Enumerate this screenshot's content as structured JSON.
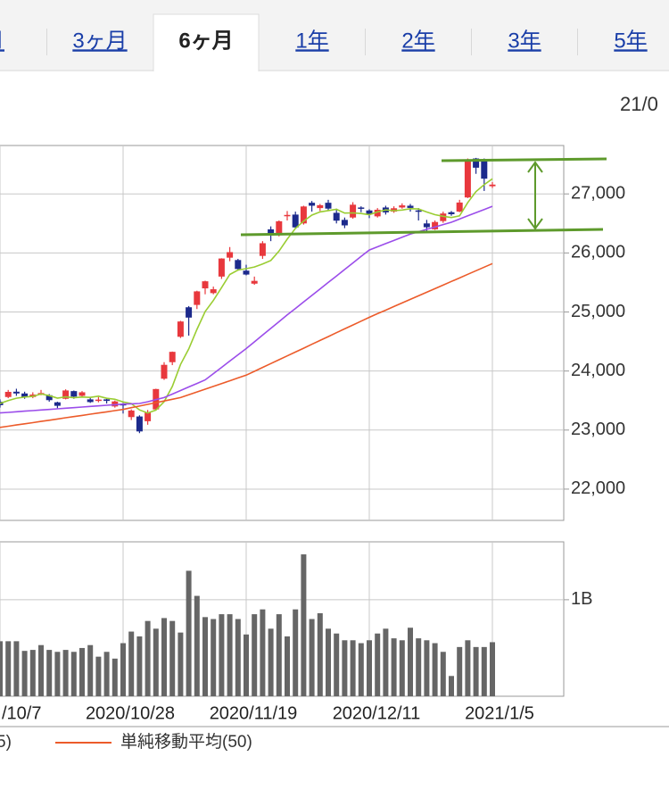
{
  "tabs": {
    "items": [
      "月",
      "3ヶ月",
      "6ヶ月",
      "1年",
      "2年",
      "3年",
      "5年"
    ],
    "selected_index": 2
  },
  "date_header": "21/0",
  "chart_data": [
    {
      "type": "candlestick",
      "open": [
        23480,
        23560,
        23650,
        23620,
        23560,
        23620,
        23590,
        23470,
        23530,
        23660,
        23580,
        23520,
        23500,
        23520,
        23400,
        23440,
        23220,
        23230,
        23150,
        23350,
        23870,
        24150,
        24580,
        25080,
        25120,
        25400,
        25320,
        25600,
        25920,
        25880,
        25700,
        25480,
        25950,
        26400,
        26300,
        26640,
        26650,
        26500,
        26850,
        26760,
        26850,
        26680,
        26560,
        26600,
        26770,
        26720,
        26620,
        26770,
        26700,
        26770,
        26800,
        26720,
        26500,
        26400,
        26540,
        26690,
        26700,
        26940,
        27600,
        27580,
        27130
      ],
      "high": [
        23520,
        23680,
        23700,
        23650,
        23640,
        23680,
        23610,
        23480,
        23690,
        23670,
        23660,
        23550,
        23560,
        23540,
        23500,
        23460,
        23350,
        23250,
        23340,
        23700,
        24150,
        24330,
        24850,
        25100,
        25360,
        25530,
        25430,
        25910,
        26100,
        25900,
        25800,
        25600,
        26200,
        26450,
        26550,
        26710,
        26700,
        26800,
        26880,
        26830,
        26900,
        26750,
        26600,
        26860,
        26790,
        26740,
        26760,
        26800,
        26790,
        26840,
        26830,
        26760,
        26560,
        26550,
        26700,
        26710,
        26900,
        27600,
        27610,
        27600,
        27200
      ],
      "low": [
        23380,
        23540,
        23580,
        23530,
        23540,
        23590,
        23480,
        23370,
        23520,
        23530,
        23560,
        23460,
        23470,
        23450,
        23380,
        23280,
        23170,
        22948,
        23090,
        23340,
        23850,
        24100,
        24560,
        24600,
        25050,
        25300,
        25300,
        25560,
        25860,
        25700,
        25620,
        25460,
        25900,
        26200,
        26280,
        26550,
        26420,
        26480,
        26700,
        26710,
        26720,
        26500,
        26420,
        26580,
        26690,
        26590,
        26600,
        26650,
        26680,
        26750,
        26700,
        26550,
        26360,
        26390,
        26510,
        26630,
        26690,
        26930,
        27340,
        27050,
        27100
      ],
      "close": [
        23422,
        23647,
        23620,
        23559,
        23601,
        23627,
        23507,
        23411,
        23671,
        23567,
        23640,
        23474,
        23516,
        23494,
        23485,
        23418,
        23331,
        22977,
        23295,
        23695,
        24105,
        24325,
        24839,
        24905,
        25349,
        25520,
        25385,
        25906,
        26014,
        25728,
        25634,
        25527,
        26165,
        26296,
        26537,
        26644,
        26433,
        26787,
        26800,
        26809,
        26751,
        26547,
        26467,
        26817,
        26756,
        26652,
        26732,
        26687,
        26757,
        26806,
        26763,
        26714,
        26436,
        26524,
        26668,
        26656,
        26854,
        27568,
        27444,
        27258,
        27158
      ],
      "up_color": "#e8383d",
      "down_color": "#1c2a8c",
      "series": [
        {
          "color": "#9acd32",
          "values": [
            23450,
            23500,
            23540,
            23560,
            23570,
            23611,
            23583,
            23541,
            23563,
            23547,
            23559,
            23553,
            23574,
            23538,
            23522,
            23477,
            23449,
            23341,
            23289,
            23339,
            23481,
            23739,
            24112,
            24374,
            24705,
            25008,
            25196,
            25413,
            25635,
            25711,
            25733,
            25762,
            25814,
            25872,
            26032,
            26234,
            26415,
            26539,
            26640,
            26695,
            26718,
            26739,
            26675,
            26678,
            26668,
            26648,
            26695,
            26729,
            26717,
            26727,
            26750,
            26745,
            26693,
            26649,
            26621,
            26600,
            26628,
            26854,
            27038,
            27156,
            27256
          ]
        },
        {
          "name": "5)",
          "color": "#9b4dea",
          "values": [
            23290,
            23300,
            23310,
            23320,
            23330,
            23340,
            23350,
            23360,
            23370,
            23380,
            23390,
            23400,
            23410,
            23420,
            23430,
            23440,
            23445,
            23450,
            23480,
            23515,
            23550,
            23610,
            23670,
            23730,
            23790,
            23850,
            23956,
            24062,
            24168,
            24274,
            24380,
            24494,
            24608,
            24722,
            24836,
            24950,
            25060,
            25170,
            25280,
            25390,
            25500,
            25610,
            25720,
            25830,
            25940,
            26050,
            26104,
            26158,
            26212,
            26266,
            26320,
            26360,
            26400,
            26440,
            26480,
            26520,
            26574,
            26628,
            26682,
            26736,
            26790
          ]
        },
        {
          "name": "単純移動平均(50)",
          "color": "#ec5b2a",
          "values": [
            23045,
            23065,
            23086,
            23106,
            23126,
            23147,
            23167,
            23187,
            23208,
            23228,
            23248,
            23269,
            23289,
            23309,
            23330,
            23350,
            23379,
            23407,
            23436,
            23464,
            23493,
            23521,
            23550,
            23598,
            23645,
            23693,
            23740,
            23788,
            23835,
            23883,
            23930,
            23995,
            24061,
            24126,
            24191,
            24257,
            24322,
            24387,
            24453,
            24518,
            24583,
            24649,
            24714,
            24779,
            24845,
            24910,
            24971,
            25031,
            25092,
            25153,
            25213,
            25274,
            25335,
            25395,
            25456,
            25517,
            25577,
            25638,
            25699,
            25759,
            25820
          ]
        }
      ],
      "ylim": [
        21470,
        27820
      ],
      "yticks": [
        {
          "value": 22000,
          "label": "22,000"
        },
        {
          "value": 23000,
          "label": "23,000"
        },
        {
          "value": 24000,
          "label": "24,000"
        },
        {
          "value": 25000,
          "label": "25,000"
        },
        {
          "value": 26000,
          "label": "26,000"
        },
        {
          "value": 27000,
          "label": "27,000"
        }
      ],
      "grid": true
    },
    {
      "type": "bar",
      "categories": [
        "/10/7",
        null,
        null,
        null,
        null,
        null,
        null,
        null,
        null,
        null,
        null,
        null,
        null,
        null,
        null,
        "2020/10/28",
        null,
        null,
        null,
        null,
        null,
        null,
        null,
        null,
        null,
        null,
        null,
        null,
        null,
        null,
        "2020/11/19",
        null,
        null,
        null,
        null,
        null,
        null,
        null,
        null,
        null,
        null,
        null,
        null,
        null,
        null,
        "2020/12/11",
        null,
        null,
        null,
        null,
        null,
        null,
        null,
        null,
        null,
        null,
        null,
        null,
        null,
        null,
        "2021/1/5"
      ],
      "values": [
        0.57,
        0.57,
        0.57,
        0.47,
        0.48,
        0.53,
        0.48,
        0.46,
        0.48,
        0.46,
        0.5,
        0.53,
        0.41,
        0.46,
        0.39,
        0.55,
        0.67,
        0.62,
        0.78,
        0.7,
        0.81,
        0.78,
        0.66,
        1.3,
        1.04,
        0.82,
        0.8,
        0.85,
        0.85,
        0.8,
        0.64,
        0.85,
        0.9,
        0.7,
        0.85,
        0.62,
        0.9,
        1.47,
        0.8,
        0.86,
        0.7,
        0.65,
        0.58,
        0.58,
        0.55,
        0.58,
        0.65,
        0.7,
        0.6,
        0.58,
        0.71,
        0.6,
        0.58,
        0.55,
        0.46,
        0.21,
        0.51,
        0.58,
        0.51,
        0.51,
        0.56
      ],
      "color": "#666666",
      "ylim": [
        0,
        1.6
      ],
      "yticks": [
        {
          "value": 1,
          "label": "1B"
        }
      ],
      "grid": true
    }
  ]
}
